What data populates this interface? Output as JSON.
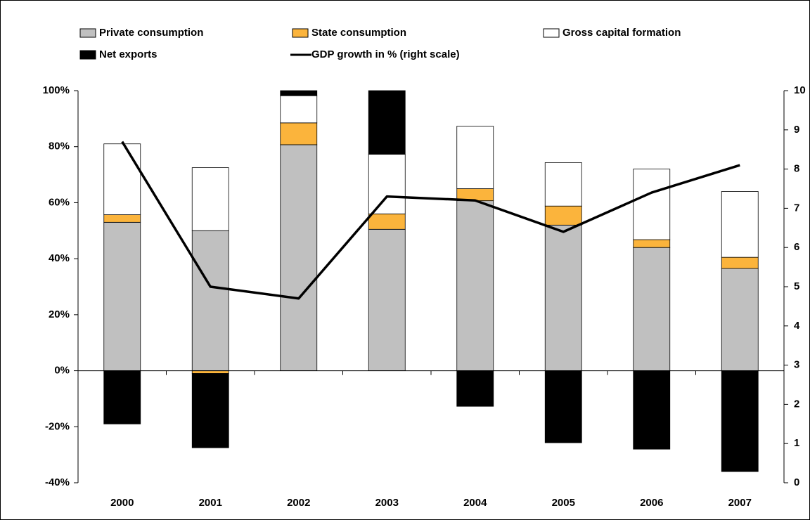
{
  "chart_data": {
    "type": "bar",
    "stacked": true,
    "categories": [
      "2000",
      "2001",
      "2002",
      "2003",
      "2004",
      "2005",
      "2006",
      "2007"
    ],
    "series": [
      {
        "name": "Private consumption",
        "color": "#c0c0c0",
        "values": [
          53,
          50,
          80.7,
          50.5,
          60.7,
          52,
          44,
          36.5
        ]
      },
      {
        "name": "State consumption",
        "color": "#fbb43c",
        "values": [
          2.7,
          -1,
          7.8,
          5.5,
          4.3,
          6.8,
          2.8,
          4
        ]
      },
      {
        "name": "Gross capital formation",
        "color": "#ffffff",
        "values": [
          25.3,
          22.5,
          9.7,
          21.3,
          22.3,
          15.5,
          25.2,
          23.5
        ]
      },
      {
        "name": "Net exports",
        "color": "#000000",
        "values": [
          -19,
          -26.5,
          1.8,
          22.7,
          -12.7,
          -25.7,
          -28,
          -36
        ]
      },
      {
        "name": "GDP growth in % (right scale)",
        "color": "#000000",
        "type": "line",
        "axis": "y2",
        "values": [
          8.7,
          5.0,
          4.7,
          7.3,
          7.2,
          6.4,
          7.4,
          8.1
        ]
      }
    ],
    "ylim": [
      -40,
      100
    ],
    "yticks": [
      {
        "value": -40,
        "label": "-40%"
      },
      {
        "value": -20,
        "label": "-20%"
      },
      {
        "value": 0,
        "label": "0%"
      },
      {
        "value": 20,
        "label": "20%"
      },
      {
        "value": 40,
        "label": "40%"
      },
      {
        "value": 60,
        "label": "60%"
      },
      {
        "value": 80,
        "label": "80%"
      },
      {
        "value": 100,
        "label": "100%"
      }
    ],
    "y2lim": [
      0,
      10
    ],
    "y2ticks": [
      0,
      1,
      2,
      3,
      4,
      5,
      6,
      7,
      8,
      9,
      10
    ],
    "grid": false,
    "legend": "top"
  }
}
